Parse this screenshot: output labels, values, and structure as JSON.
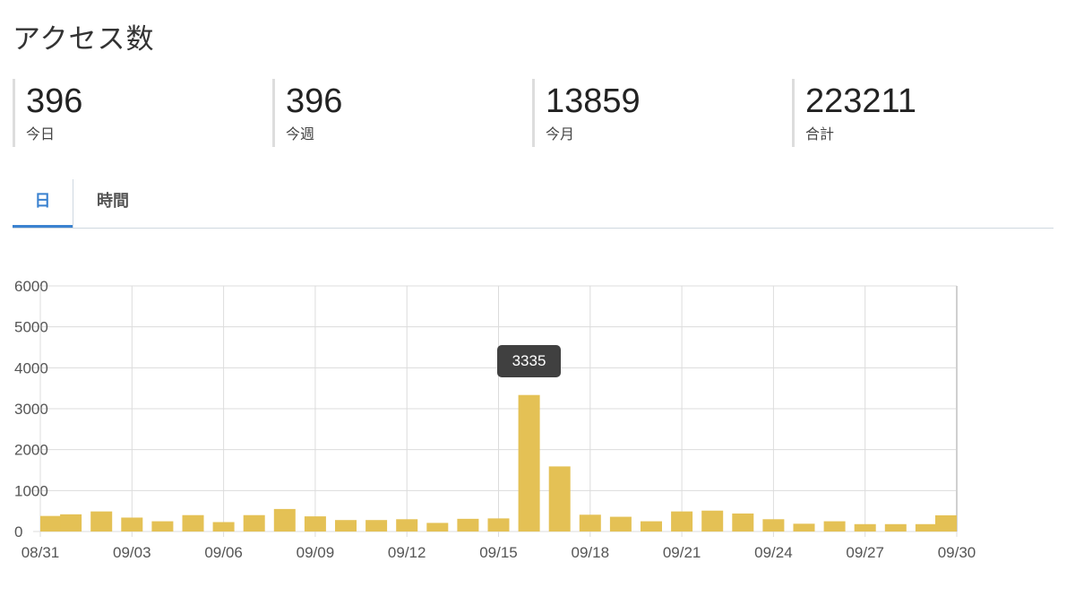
{
  "header": {
    "title": "アクセス数"
  },
  "stats": [
    {
      "value": "396",
      "label": "今日"
    },
    {
      "value": "396",
      "label": "今週"
    },
    {
      "value": "13859",
      "label": "今月"
    },
    {
      "value": "223211",
      "label": "合計"
    }
  ],
  "tabs": [
    {
      "label": "日",
      "active": true
    },
    {
      "label": "時間",
      "active": false
    }
  ],
  "tooltip": {
    "text": "3335",
    "category": "09/16"
  },
  "colors": {
    "bar": "#e4c155",
    "accent": "#3b82d0",
    "tooltip_bg": "#404040"
  },
  "chart_data": {
    "type": "bar",
    "categories": [
      "08/31",
      "09/01",
      "09/02",
      "09/03",
      "09/04",
      "09/05",
      "09/06",
      "09/07",
      "09/08",
      "09/09",
      "09/10",
      "09/11",
      "09/12",
      "09/13",
      "09/14",
      "09/15",
      "09/16",
      "09/17",
      "09/18",
      "09/19",
      "09/20",
      "09/21",
      "09/22",
      "09/23",
      "09/24",
      "09/25",
      "09/26",
      "09/27",
      "09/28",
      "09/29",
      "09/30"
    ],
    "values": [
      380,
      420,
      490,
      340,
      250,
      400,
      230,
      400,
      550,
      370,
      280,
      280,
      300,
      210,
      310,
      320,
      3335,
      1590,
      410,
      360,
      250,
      490,
      510,
      440,
      300,
      190,
      250,
      180,
      180,
      180,
      396
    ],
    "x_tick_labels": [
      "08/31",
      "09/03",
      "09/06",
      "09/09",
      "09/12",
      "09/15",
      "09/18",
      "09/21",
      "09/24",
      "09/27",
      "09/30"
    ],
    "y_ticks": [
      0,
      1000,
      2000,
      3000,
      4000,
      5000,
      6000
    ],
    "ylim": [
      0,
      6000
    ],
    "grid": true,
    "legend": "none"
  }
}
